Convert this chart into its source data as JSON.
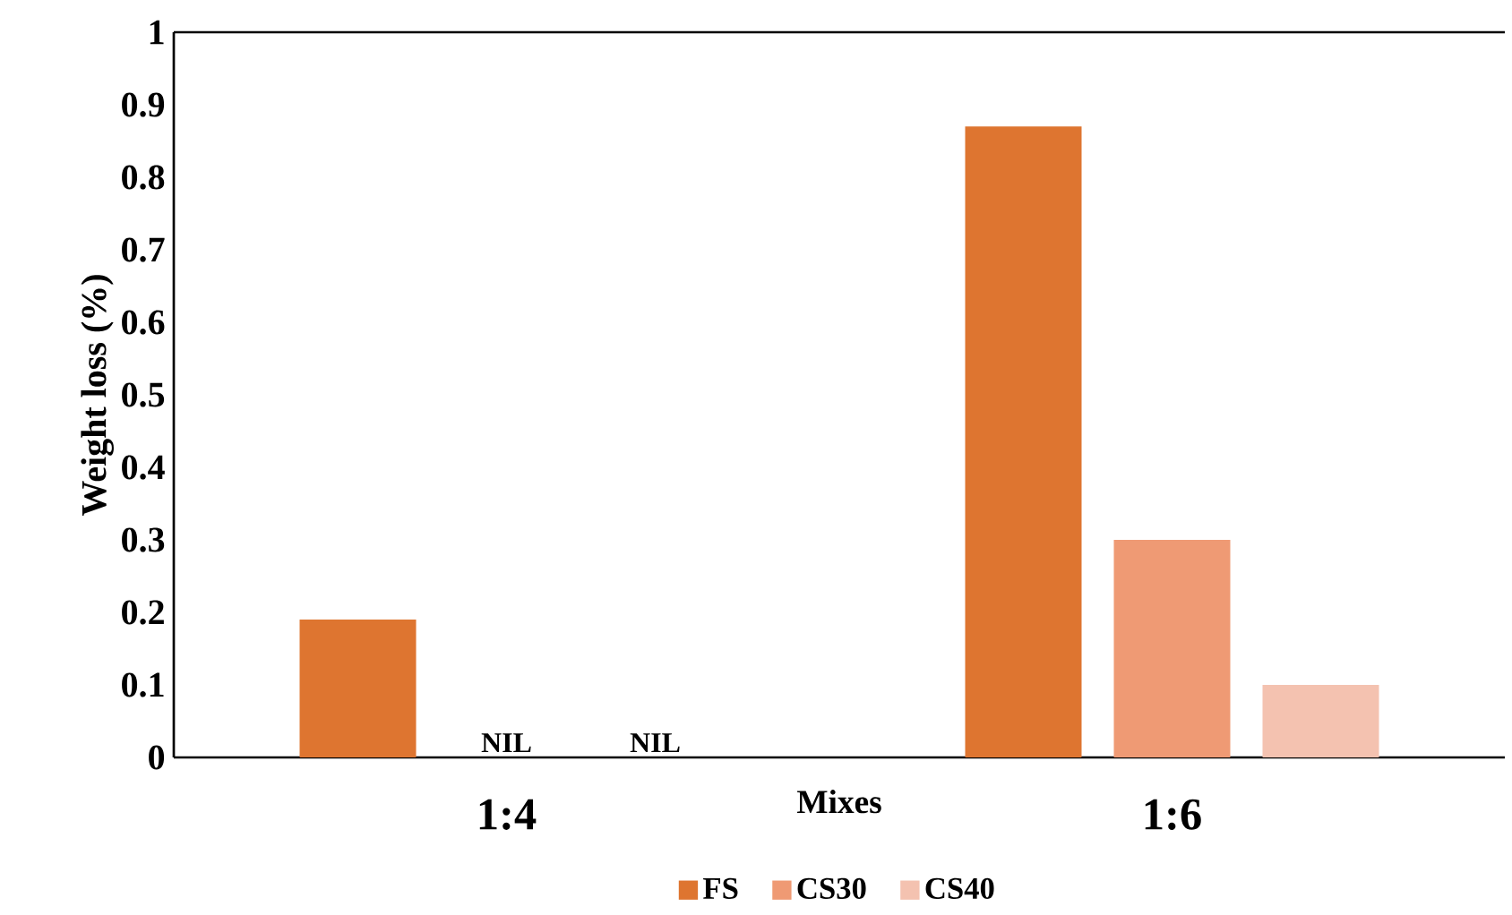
{
  "chart_data": {
    "type": "bar",
    "xlabel": "Mixes",
    "ylabel": "Weight loss (%)",
    "categories": [
      "1:4",
      "1:6"
    ],
    "series": [
      {
        "name": "FS",
        "color": "#de7530",
        "values": [
          0.19,
          0.87
        ]
      },
      {
        "name": "CS30",
        "color": "#ef9a74",
        "values": [
          null,
          0.3
        ],
        "value_labels": [
          "NIL",
          null
        ]
      },
      {
        "name": "CS40",
        "color": "#f4c2b0",
        "values": [
          null,
          0.1
        ],
        "value_labels": [
          "NIL",
          null
        ]
      }
    ],
    "ylim": [
      0,
      1
    ],
    "yticks": [
      0,
      0.1,
      0.2,
      0.3,
      0.4,
      0.5,
      0.6,
      0.7,
      0.8,
      0.9,
      1
    ],
    "grid": false,
    "legend": "bottom"
  }
}
